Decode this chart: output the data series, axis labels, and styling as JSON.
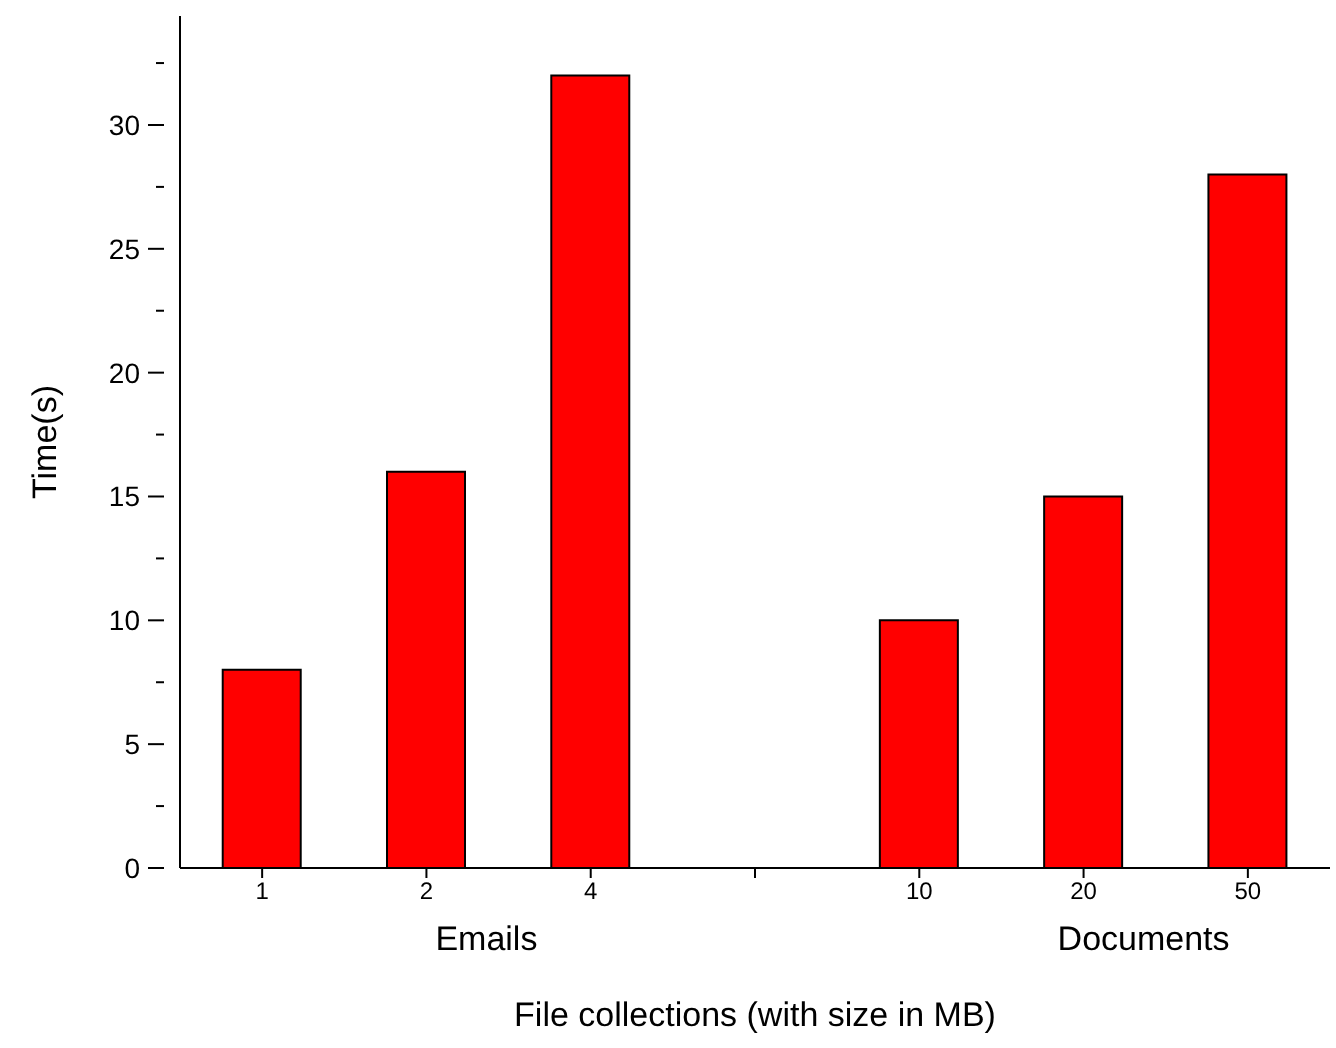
{
  "chart_data": {
    "type": "bar",
    "xlabel": "File collections (with size in MB)",
    "ylabel": "Time(s)",
    "categories": [
      "1",
      "2",
      "4",
      null,
      "10",
      "20",
      "50"
    ],
    "series": [
      {
        "color": "#ff0000",
        "values": [
          8,
          16,
          32,
          null,
          10,
          15,
          28
        ]
      }
    ],
    "ylim": [
      0,
      34.4
    ],
    "yticks": [
      0,
      {
        "value": 2.5,
        "label": null
      },
      5,
      {
        "value": 7.5,
        "label": null
      },
      10,
      {
        "value": 12.5,
        "label": null
      },
      15,
      {
        "value": 17.5,
        "label": null
      },
      20,
      {
        "value": 22.5,
        "label": null
      },
      25,
      {
        "value": 27.5,
        "label": null
      },
      30,
      {
        "value": 32.5,
        "label": null
      }
    ],
    "annotations": [
      "Emails",
      "Documents"
    ],
    "grid": false,
    "legend": false
  }
}
